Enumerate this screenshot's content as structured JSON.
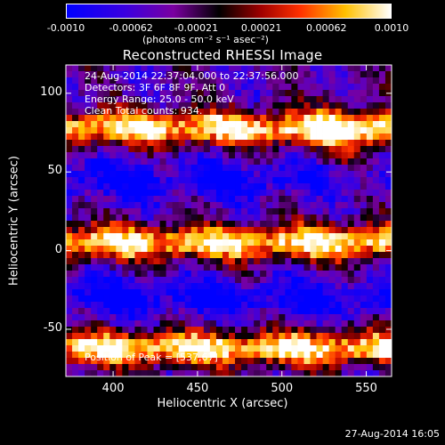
{
  "colorbar": {
    "ticks": [
      "-0.0010",
      "-0.00062",
      "-0.00021",
      "0.00021",
      "0.00062",
      "0.0010"
    ],
    "unit_label": "(photons cm⁻² s⁻¹ asec⁻²)"
  },
  "chart_data": {
    "type": "heatmap",
    "title": "Reconstructed RHESSI Image",
    "xlabel": "Heliocentric X (arcsec)",
    "ylabel": "Heliocentric Y (arcsec)",
    "xlim": [
      372,
      565
    ],
    "ylim": [
      -80,
      118
    ],
    "xticks": [
      "400",
      "450",
      "500",
      "550"
    ],
    "yticks": [
      "100",
      "50",
      "0",
      "-50"
    ],
    "colorbar_range": [
      -0.001,
      0.001
    ],
    "colormap": "blue-purple-black-red-yellow-white",
    "bright_bands_y": [
      -62,
      5,
      78
    ],
    "dark_bands_y": [
      -30,
      45
    ],
    "annotations": {
      "time": "24-Aug-2014 22:37:04.000 to 22:37:56.000",
      "detectors": "Detectors: 3F 6F 8F 9F, Att 0",
      "energy": "Energy Range: 25.0 - 50.0 keV",
      "clean": "Clean     Total counts: 934.",
      "peak": "Position of Peak = [537,67]"
    }
  },
  "footer": {
    "date": "27-Aug-2014 16:05"
  }
}
